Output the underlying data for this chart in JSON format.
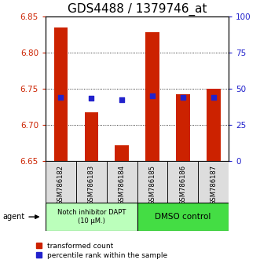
{
  "title": "GDS4488 / 1379746_at",
  "samples": [
    "GSM786182",
    "GSM786183",
    "GSM786184",
    "GSM786185",
    "GSM786186",
    "GSM786187"
  ],
  "red_values": [
    6.835,
    6.718,
    6.672,
    6.828,
    6.743,
    6.75
  ],
  "blue_values": [
    6.738,
    6.737,
    6.735,
    6.74,
    6.738,
    6.738
  ],
  "ylim_left": [
    6.65,
    6.85
  ],
  "ylim_right": [
    0,
    100
  ],
  "yticks_left": [
    6.65,
    6.7,
    6.75,
    6.8,
    6.85
  ],
  "yticks_right": [
    0,
    25,
    50,
    75,
    100
  ],
  "bar_bottom": 6.65,
  "bar_color": "#cc2200",
  "blue_color": "#2222cc",
  "group1_label": "Notch inhibitor DAPT\n(10 μM.)",
  "group2_label": "DMSO control",
  "group1_color": "#bbffbb",
  "group2_color": "#44dd44",
  "agent_label": "agent",
  "legend_red": "transformed count",
  "legend_blue": "percentile rank within the sample",
  "title_fontsize": 11,
  "axis_color_left": "#cc2200",
  "axis_color_right": "#2222cc",
  "sample_bg": "#dddddd",
  "grid_ticks": [
    6.7,
    6.75,
    6.8
  ]
}
